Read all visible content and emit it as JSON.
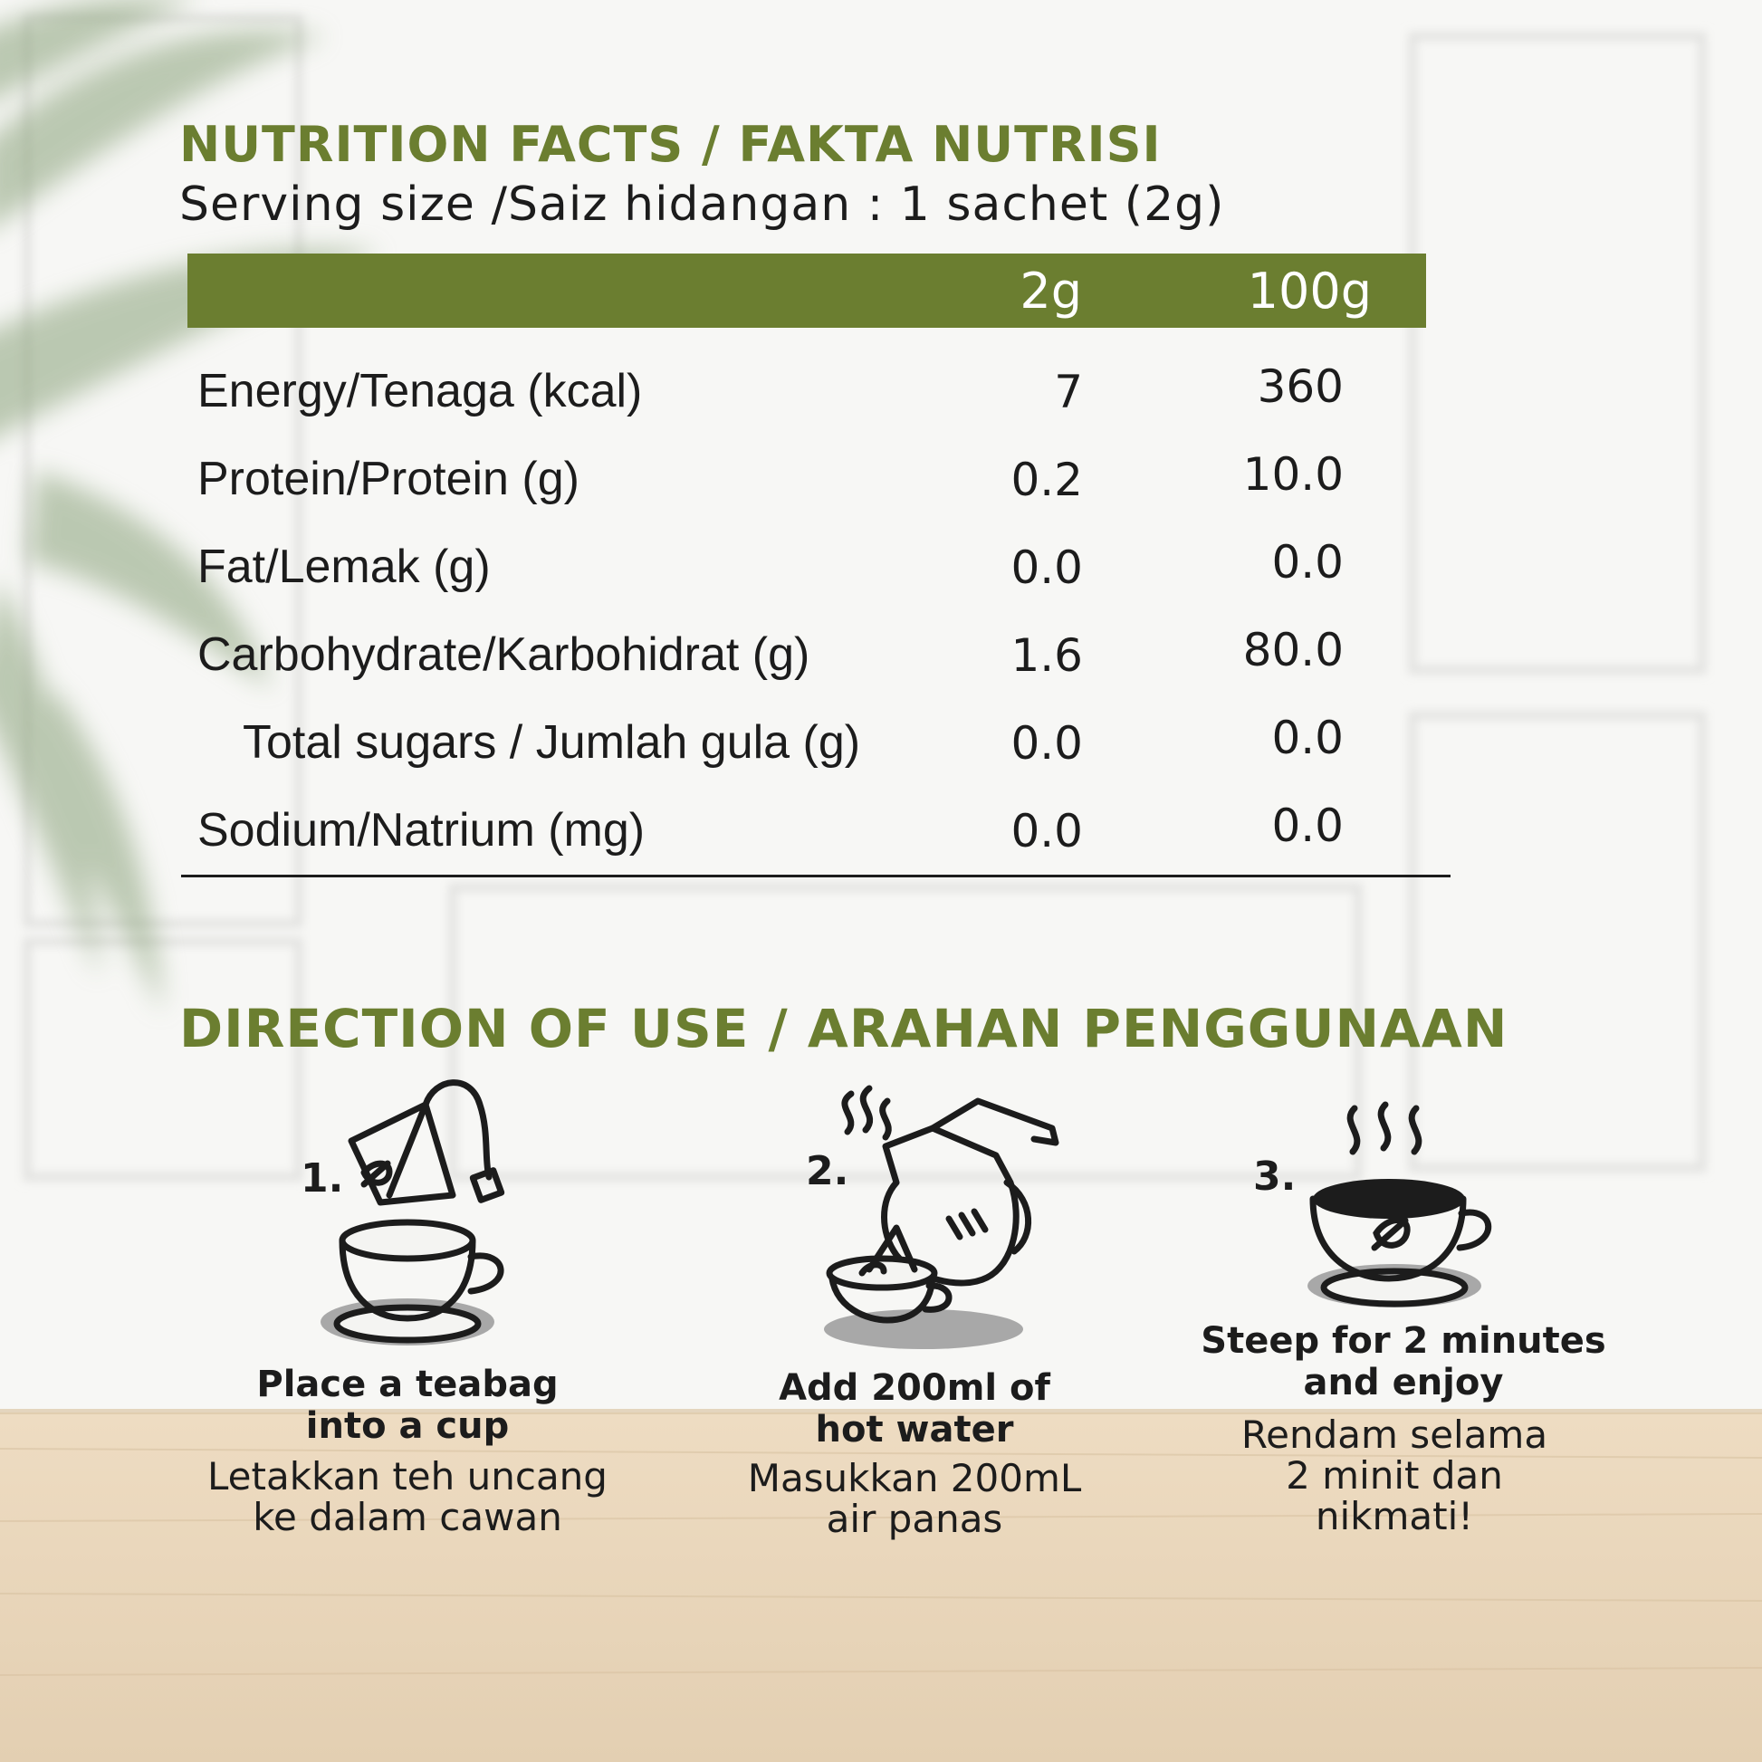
{
  "nutrition": {
    "title": "NUTRITION FACTS / FAKTA NUTRISI",
    "serving_size": "Serving size /Saiz hidangan : 1 sachet (2g)",
    "columns": [
      "2g",
      "100g"
    ],
    "rows": [
      {
        "label": "Energy/Tenaga (kcal)",
        "per_serving": "7",
        "per_100g": "360"
      },
      {
        "label": "Protein/Protein (g)",
        "per_serving": "0.2",
        "per_100g": "10.0"
      },
      {
        "label": "Fat/Lemak (g)",
        "per_serving": "0.0",
        "per_100g": "0.0"
      },
      {
        "label": "Carbohydrate/Karbohidrat (g)",
        "per_serving": "1.6",
        "per_100g": "80.0"
      },
      {
        "label": "Total sugars / Jumlah gula (g)",
        "per_serving": "0.0",
        "per_100g": "0.0"
      },
      {
        "label": "Sodium/Natrium (mg)",
        "per_serving": "0.0",
        "per_100g": "0.0"
      }
    ]
  },
  "directions": {
    "title": "DIRECTION OF USE / ARAHAN PENGGUNAAN",
    "steps": [
      {
        "number": "1.",
        "en": "Place a teabag\ninto a cup",
        "ms": "Letakkan teh uncang\nke dalam cawan",
        "icon": "teabag-cup-icon"
      },
      {
        "number": "2.",
        "en": "Add 200ml of\nhot water",
        "ms": "Masukkan 200mL\nair panas",
        "icon": "kettle-pour-icon"
      },
      {
        "number": "3.",
        "en": "Steep for 2 minutes\nand enjoy",
        "ms": "Rendam selama\n2 minit dan\nnikmati!",
        "icon": "steaming-cup-icon"
      }
    ]
  },
  "colors": {
    "accent_green": "#6b7e30",
    "text": "#1c1c1c",
    "wood": "#e8d6bc",
    "wall": "#f6f6f4"
  }
}
